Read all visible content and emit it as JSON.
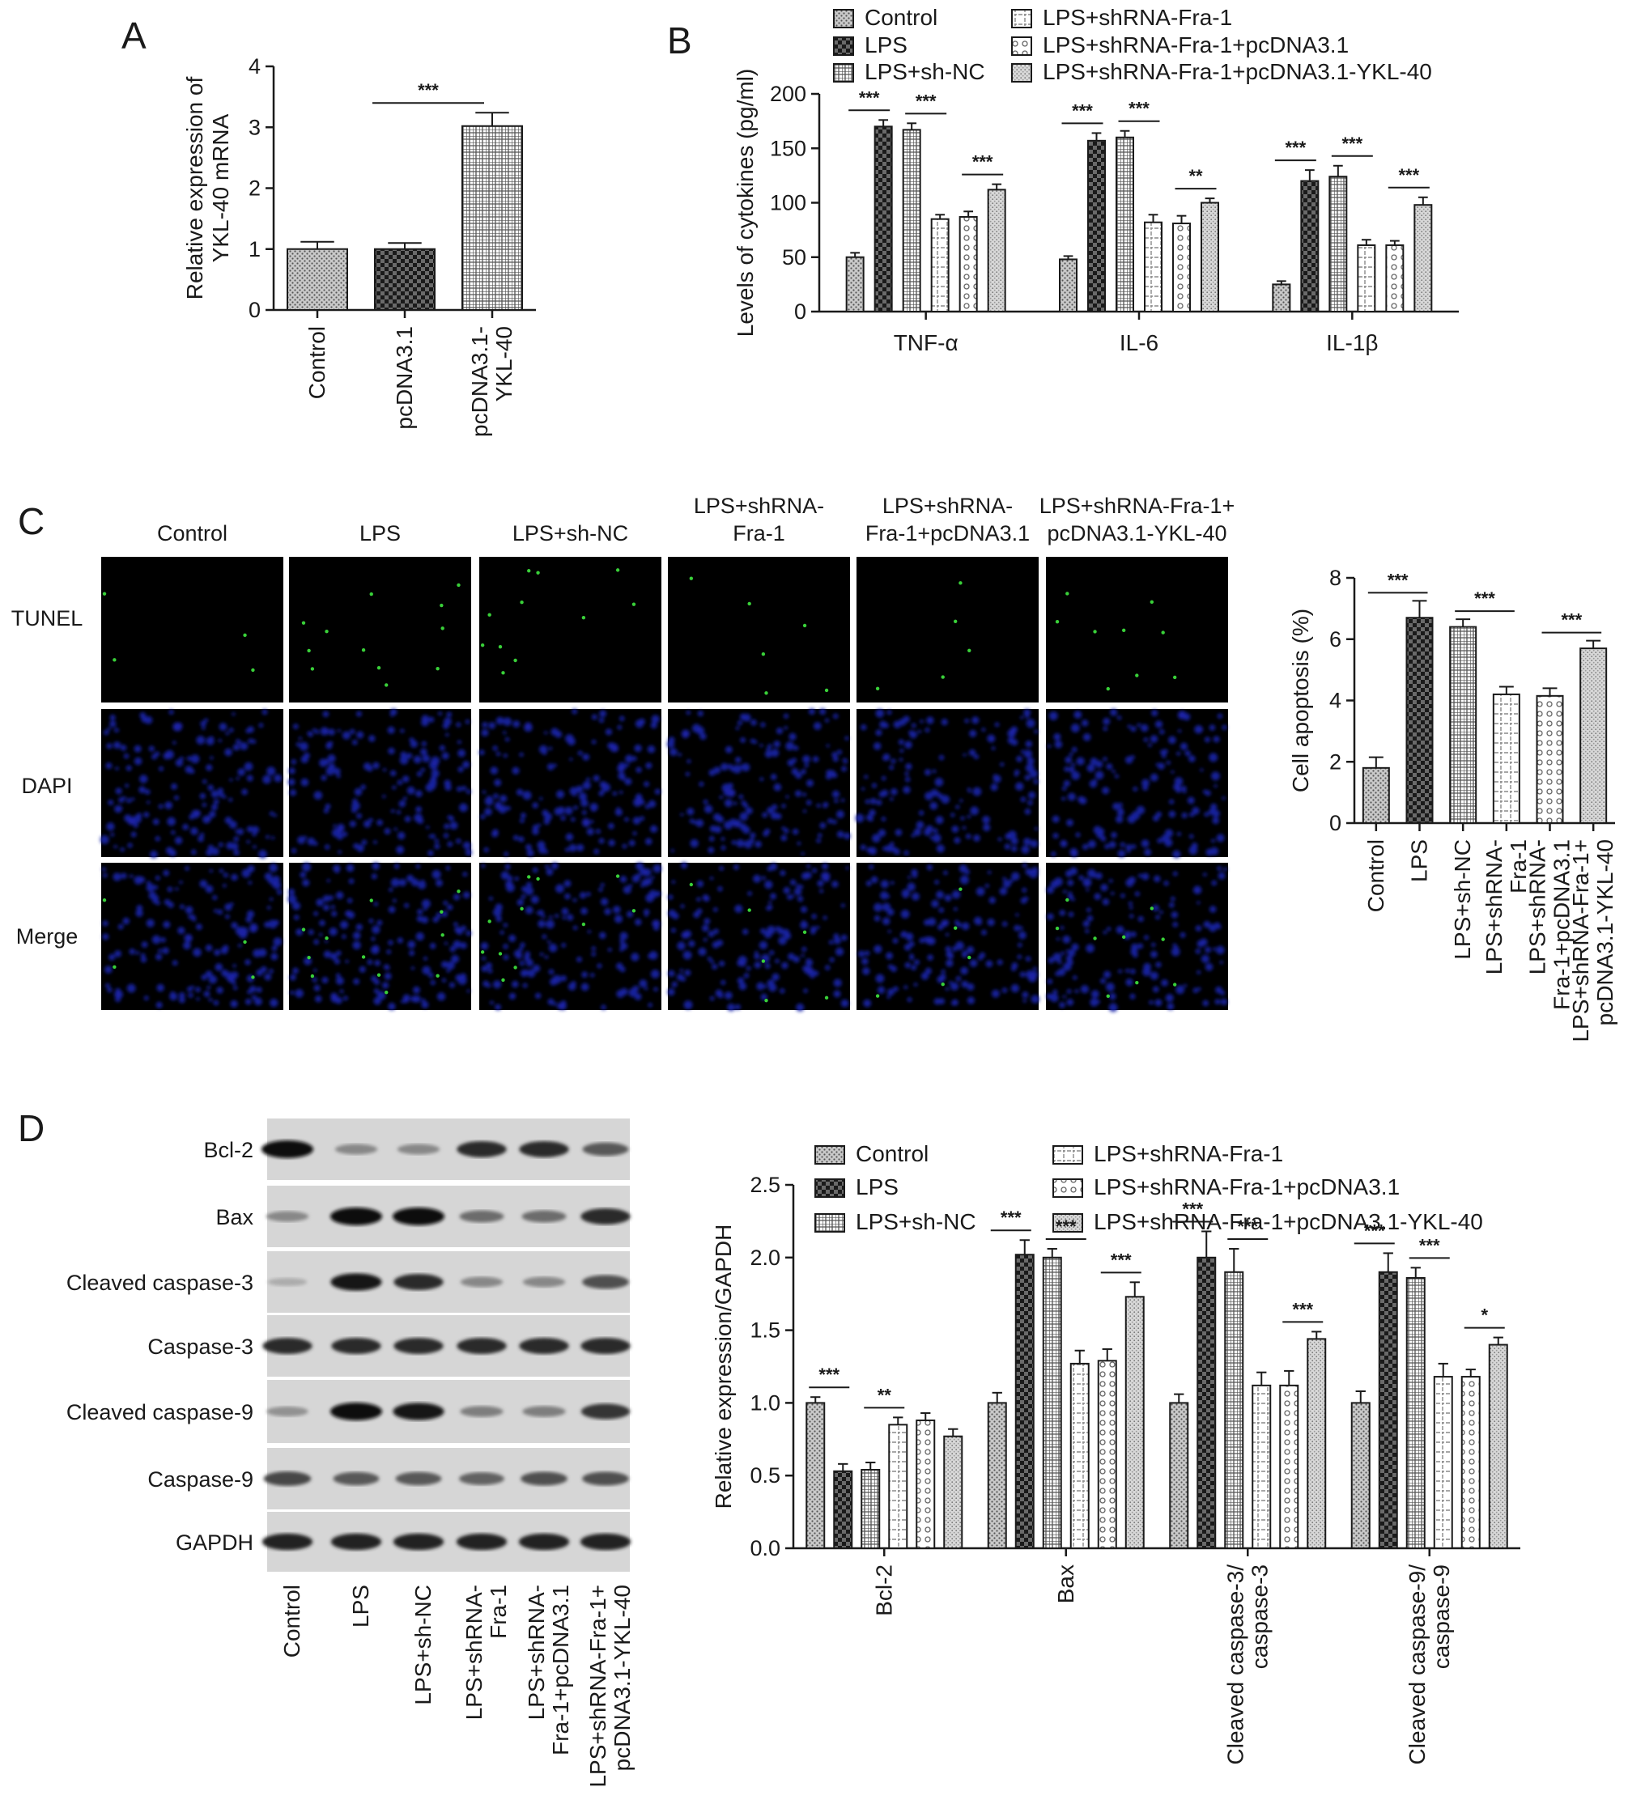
{
  "panels": [
    "A",
    "B",
    "C",
    "D"
  ],
  "colors": {
    "ink": "#1a1a1a",
    "dapi": "#1b22a8",
    "tunel": "#39d039",
    "blot": "#d6d6d6"
  },
  "chart_data": [
    {
      "id": "A",
      "type": "bar",
      "ylabel": [
        "Relative expression of",
        "YKL-40 mRNA"
      ],
      "ylim": [
        0,
        4
      ],
      "yticks": [
        "0",
        "1",
        "2",
        "3",
        "4"
      ],
      "categories": [
        "Control",
        "pcDNA3.1",
        "pcDNA3.1- YKL-40"
      ],
      "category_lines": [
        [
          "Control"
        ],
        [
          "pcDNA3.1"
        ],
        [
          "pcDNA3.1-",
          "YKL-40"
        ]
      ],
      "values": [
        1.0,
        1.0,
        3.02
      ],
      "errors": [
        0.12,
        0.1,
        0.22
      ],
      "patterns": [
        "pat-dots",
        "pat-check",
        "pat-grid"
      ],
      "significance": [
        {
          "from": 1,
          "to": 2,
          "label": "***"
        }
      ]
    },
    {
      "id": "B",
      "type": "grouped-bar",
      "ylabel": "Levels of cytokines (pg/ml)",
      "ylim": [
        0,
        200
      ],
      "yticks": [
        "0",
        "50",
        "100",
        "150",
        "200"
      ],
      "legend": [
        "Control",
        "LPS",
        "LPS+sh-NC",
        "LPS+shRNA-Fra-1",
        "LPS+shRNA-Fra-1+pcDNA3.1",
        "LPS+shRNA-Fra-1+pcDNA3.1-YKL-40"
      ],
      "categories": [
        "TNF-α",
        "IL-6",
        "IL-1β"
      ],
      "series": [
        {
          "name": "Control",
          "values": [
            50,
            48,
            25
          ],
          "errors": [
            4,
            3,
            3
          ]
        },
        {
          "name": "LPS",
          "values": [
            170,
            157,
            120
          ],
          "errors": [
            6,
            7,
            10
          ]
        },
        {
          "name": "LPS+sh-NC",
          "values": [
            167,
            160,
            124
          ],
          "errors": [
            6,
            6,
            10
          ]
        },
        {
          "name": "LPS+shRNA-Fra-1",
          "values": [
            85,
            82,
            61
          ],
          "errors": [
            4,
            7,
            5
          ]
        },
        {
          "name": "LPS+shRNA-Fra-1+pcDNA3.1",
          "values": [
            87,
            81,
            61
          ],
          "errors": [
            5,
            7,
            4
          ]
        },
        {
          "name": "LPS+shRNA-Fra-1+pcDNA3.1-YKL-40",
          "values": [
            112,
            100,
            98
          ],
          "errors": [
            5,
            4,
            7
          ]
        }
      ],
      "significance": [
        {
          "group": 0,
          "from": 0,
          "to": 1,
          "label": "***"
        },
        {
          "group": 0,
          "from": 2,
          "to": 3,
          "label": "***"
        },
        {
          "group": 0,
          "from": 4,
          "to": 5,
          "label": "***"
        },
        {
          "group": 1,
          "from": 0,
          "to": 1,
          "label": "***"
        },
        {
          "group": 1,
          "from": 2,
          "to": 3,
          "label": "***"
        },
        {
          "group": 1,
          "from": 4,
          "to": 5,
          "label": "**"
        },
        {
          "group": 2,
          "from": 0,
          "to": 1,
          "label": "***"
        },
        {
          "group": 2,
          "from": 2,
          "to": 3,
          "label": "***"
        },
        {
          "group": 2,
          "from": 4,
          "to": 5,
          "label": "***"
        }
      ]
    },
    {
      "id": "C-chart",
      "type": "bar",
      "ylabel": "Cell apoptosis (%)",
      "ylim": [
        0,
        8
      ],
      "yticks": [
        "0",
        "2",
        "4",
        "6",
        "8"
      ],
      "categories": [
        "Control",
        "LPS",
        "LPS+sh-NC",
        "LPS+shRNA-Fra-1",
        "LPS+shRNA-Fra-1+pcDNA3.1",
        "LPS+shRNA-Fra-1+pcDNA3.1-YKL-40"
      ],
      "category_lines": [
        [
          "Control"
        ],
        [
          "LPS"
        ],
        [
          "LPS+sh-NC"
        ],
        [
          "LPS+shRNA-",
          "Fra-1"
        ],
        [
          "LPS+shRNA-",
          "Fra-1+pcDNA3.1"
        ],
        [
          "LPS+shRNA-Fra-1+",
          "pcDNA3.1-YKL-40"
        ]
      ],
      "values": [
        1.8,
        6.7,
        6.4,
        4.2,
        4.15,
        5.7
      ],
      "errors": [
        0.35,
        0.55,
        0.25,
        0.25,
        0.25,
        0.25
      ],
      "significance": [
        {
          "from": 0,
          "to": 1,
          "label": "***"
        },
        {
          "from": 2,
          "to": 3,
          "label": "***"
        },
        {
          "from": 4,
          "to": 5,
          "label": "***"
        }
      ]
    },
    {
      "id": "D-chart",
      "type": "grouped-bar",
      "ylabel": "Relative expression/GAPDH",
      "ylim": [
        0,
        2.5
      ],
      "yticks": [
        "0.0",
        "0.5",
        "1.0",
        "1.5",
        "2.0",
        "2.5"
      ],
      "legend": [
        "Control",
        "LPS",
        "LPS+sh-NC",
        "LPS+shRNA-Fra-1",
        "LPS+shRNA-Fra-1+pcDNA3.1",
        "LPS+shRNA-Fra-1+pcDNA3.1-YKL-40"
      ],
      "categories": [
        "Bcl-2",
        "Bax",
        "Cleaved caspase-3/ caspase-3",
        "Cleaved caspase-9/ caspase-9"
      ],
      "category_lines": [
        [
          "Bcl-2"
        ],
        [
          "Bax"
        ],
        [
          "Cleaved caspase-3/",
          "caspase-3"
        ],
        [
          "Cleaved caspase-9/",
          "caspase-9"
        ]
      ],
      "series": [
        {
          "name": "Control",
          "values": [
            1.0,
            1.0,
            1.0,
            1.0
          ],
          "errors": [
            0.04,
            0.07,
            0.06,
            0.08
          ]
        },
        {
          "name": "LPS",
          "values": [
            0.53,
            2.02,
            2.0,
            1.9
          ],
          "errors": [
            0.05,
            0.1,
            0.18,
            0.13
          ]
        },
        {
          "name": "LPS+sh-NC",
          "values": [
            0.54,
            2.0,
            1.9,
            1.86
          ],
          "errors": [
            0.05,
            0.06,
            0.16,
            0.07
          ]
        },
        {
          "name": "LPS+shRNA-Fra-1",
          "values": [
            0.85,
            1.27,
            1.12,
            1.18
          ],
          "errors": [
            0.05,
            0.09,
            0.09,
            0.09
          ]
        },
        {
          "name": "LPS+shRNA-Fra-1+pcDNA3.1",
          "values": [
            0.88,
            1.29,
            1.12,
            1.18
          ],
          "errors": [
            0.05,
            0.08,
            0.1,
            0.05
          ]
        },
        {
          "name": "LPS+shRNA-Fra-1+pcDNA3.1-YKL-40",
          "values": [
            0.77,
            1.73,
            1.44,
            1.4
          ],
          "errors": [
            0.05,
            0.1,
            0.05,
            0.05
          ]
        }
      ],
      "significance": [
        {
          "group": 0,
          "from": 0,
          "to": 1,
          "label": "***"
        },
        {
          "group": 0,
          "from": 2,
          "to": 3,
          "label": "**"
        },
        {
          "group": 1,
          "from": 0,
          "to": 1,
          "label": "***"
        },
        {
          "group": 1,
          "from": 2,
          "to": 3,
          "label": "***"
        },
        {
          "group": 1,
          "from": 4,
          "to": 5,
          "label": "***"
        },
        {
          "group": 2,
          "from": 0,
          "to": 1,
          "label": "***"
        },
        {
          "group": 2,
          "from": 2,
          "to": 3,
          "label": "***"
        },
        {
          "group": 2,
          "from": 4,
          "to": 5,
          "label": "***"
        },
        {
          "group": 3,
          "from": 0,
          "to": 1,
          "label": "***"
        },
        {
          "group": 3,
          "from": 2,
          "to": 3,
          "label": "***"
        },
        {
          "group": 3,
          "from": 4,
          "to": 5,
          "label": "*"
        }
      ]
    }
  ],
  "microscopy": {
    "column_headers": [
      [
        "Control"
      ],
      [
        "LPS"
      ],
      [
        "LPS+sh-NC"
      ],
      [
        "LPS+shRNA-",
        "Fra-1"
      ],
      [
        "LPS+shRNA-",
        "Fra-1+pcDNA3.1"
      ],
      [
        "LPS+shRNA-Fra-1+",
        "pcDNA3.1-YKL-40"
      ]
    ],
    "row_labels": [
      "TUNEL",
      "DAPI",
      "Merge"
    ],
    "tunel_positive_counts": [
      4,
      12,
      11,
      6,
      5,
      9
    ]
  },
  "western_blot": {
    "proteins": [
      "Bcl-2",
      "Bax",
      "Cleaved caspase-3",
      "Caspase-3",
      "Cleaved caspase-9",
      "Caspase-9",
      "GAPDH"
    ],
    "lanes": [
      [
        "Control"
      ],
      [
        "LPS"
      ],
      [
        "LPS+sh-NC"
      ],
      [
        "LPS+shRNA-",
        "Fra-1"
      ],
      [
        "LPS+shRNA-",
        "Fra-1+pcDNA3.1"
      ],
      [
        "LPS+shRNA-Fra-1+",
        "pcDNA3.1-YKL-40"
      ]
    ],
    "band_intensity": [
      [
        1.0,
        0.35,
        0.35,
        0.85,
        0.85,
        0.6
      ],
      [
        0.35,
        1.0,
        1.0,
        0.5,
        0.5,
        0.85
      ],
      [
        0.15,
        0.95,
        0.85,
        0.35,
        0.35,
        0.65
      ],
      [
        0.85,
        0.85,
        0.85,
        0.85,
        0.85,
        0.85
      ],
      [
        0.3,
        1.0,
        0.95,
        0.4,
        0.4,
        0.8
      ],
      [
        0.7,
        0.6,
        0.6,
        0.55,
        0.65,
        0.65
      ],
      [
        0.9,
        0.9,
        0.9,
        0.9,
        0.9,
        0.9
      ]
    ]
  }
}
